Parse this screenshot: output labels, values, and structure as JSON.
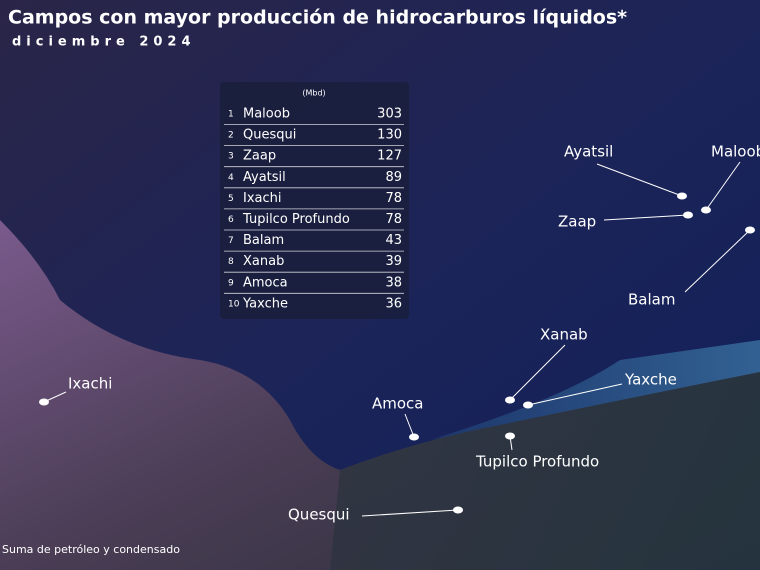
{
  "header": {
    "title": "Campos con mayor producción de hidrocarburos líquidos*",
    "subtitle": "diciembre 2024"
  },
  "table": {
    "unit": "(Mbd)",
    "rows": [
      [
        1,
        "Maloob",
        303
      ],
      [
        2,
        "Quesqui",
        130
      ],
      [
        3,
        "Zaap",
        127
      ],
      [
        4,
        "Ayatsil",
        89
      ],
      [
        5,
        "Ixachi",
        78
      ],
      [
        6,
        "Tupilco Profundo",
        78
      ],
      [
        7,
        "Balam",
        43
      ],
      [
        8,
        "Xanab",
        39
      ],
      [
        9,
        "Amoca",
        38
      ],
      [
        10,
        "Yaxche",
        36
      ]
    ]
  },
  "map_labels": [
    "Ayatsil",
    "Maloob",
    "Zaap",
    "Balam",
    "Xanab",
    "Yaxche",
    "Amoca",
    "Tupilco Profundo",
    "Quesqui",
    "Ixachi"
  ],
  "footnote": "Suma de petróleo y condensado"
}
